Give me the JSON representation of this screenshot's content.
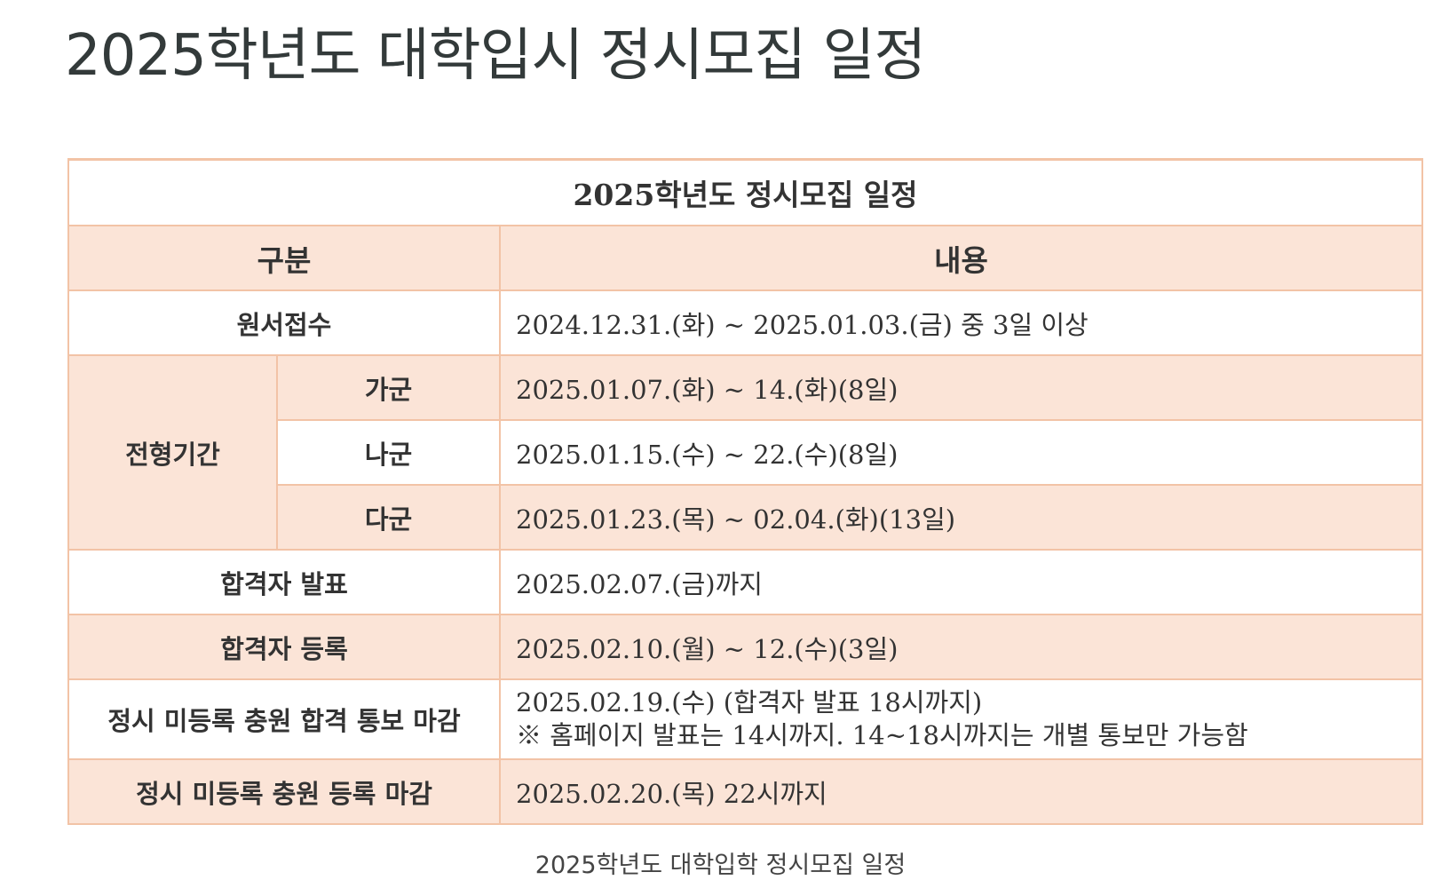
{
  "page": {
    "title": "2025학년도 대학입시 정시모집 일정",
    "caption": "2025학년도 대학입학 정시모집 일정"
  },
  "table": {
    "title": "2025학년도 정시모집 일정",
    "headers": [
      "구분",
      "내용"
    ],
    "rows": {
      "application": {
        "label": "원서접수",
        "value": "2024.12.31.(화) ~ 2025.01.03.(금) 중 3일 이상"
      },
      "screening": {
        "label": "전형기간",
        "groups": [
          {
            "name": "가군",
            "value": "2025.01.07.(화) ~ 14.(화)(8일)"
          },
          {
            "name": "나군",
            "value": "2025.01.15.(수) ~ 22.(수)(8일)"
          },
          {
            "name": "다군",
            "value": "2025.01.23.(목) ~ 02.04.(화)(13일)"
          }
        ]
      },
      "announcement": {
        "label": "합격자 발표",
        "value": "2025.02.07.(금)까지"
      },
      "registration": {
        "label": "합격자 등록",
        "value": "2025.02.10.(월) ~ 12.(수)(3일)"
      },
      "supplementary_notice": {
        "label": "정시 미등록 충원 합격 통보 마감",
        "value_line1": "2025.02.19.(수) (합격자 발표 18시까지)",
        "value_line2": "※ 홈페이지 발표는 14시까지. 14~18시까지는 개별 통보만 가능함"
      },
      "supplementary_registration": {
        "label": "정시 미등록 충원 등록 마감",
        "value": "2025.02.20.(목) 22시까지"
      }
    }
  },
  "colors": {
    "border": "#f2c3a6",
    "peach_fill": "#fbe4d7",
    "white_fill": "#ffffff",
    "text": "#333333"
  }
}
